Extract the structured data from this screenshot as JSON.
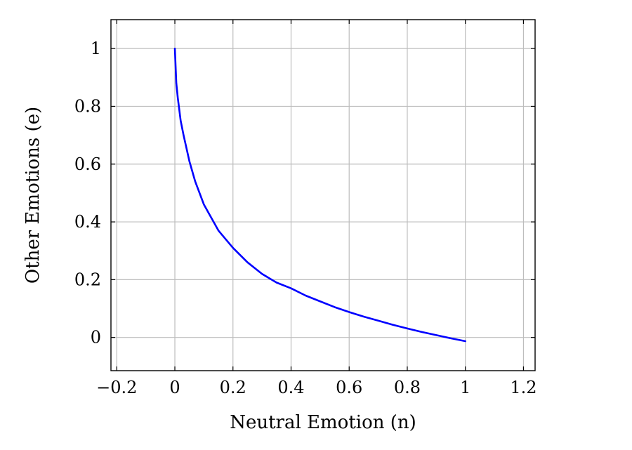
{
  "chart_data": {
    "type": "line",
    "title": "",
    "xlabel": "Neutral Emotion (n)",
    "ylabel": "Other Emotions (e)",
    "xlim": [
      -0.22,
      1.24
    ],
    "ylim": [
      -0.115,
      1.1
    ],
    "xticks": [
      -0.2,
      0,
      0.2,
      0.4,
      0.6,
      0.8,
      1,
      1.2
    ],
    "xtick_labels": [
      "−0.2",
      "0",
      "0.2",
      "0.4",
      "0.6",
      "0.8",
      "1",
      "1.2"
    ],
    "yticks": [
      0,
      0.2,
      0.4,
      0.6,
      0.8,
      1
    ],
    "ytick_labels": [
      "0",
      "0.2",
      "0.4",
      "0.6",
      "0.8",
      "1"
    ],
    "grid": true,
    "legend": "none",
    "series": [
      {
        "color": "#0000ff",
        "x": [
          0,
          0.005,
          0.01,
          0.02,
          0.03,
          0.05,
          0.07,
          0.1,
          0.15,
          0.2,
          0.25,
          0.3,
          0.35,
          0.4,
          0.45,
          0.5,
          0.55,
          0.6,
          0.65,
          0.7,
          0.75,
          0.8,
          0.85,
          0.9,
          0.95,
          1.0
        ],
        "y": [
          1.0,
          0.88,
          0.83,
          0.75,
          0.7,
          0.61,
          0.54,
          0.46,
          0.37,
          0.31,
          0.26,
          0.22,
          0.19,
          0.17,
          0.145,
          0.125,
          0.105,
          0.088,
          0.072,
          0.058,
          0.044,
          0.031,
          0.019,
          0.008,
          -0.003,
          -0.013
        ]
      }
    ]
  }
}
